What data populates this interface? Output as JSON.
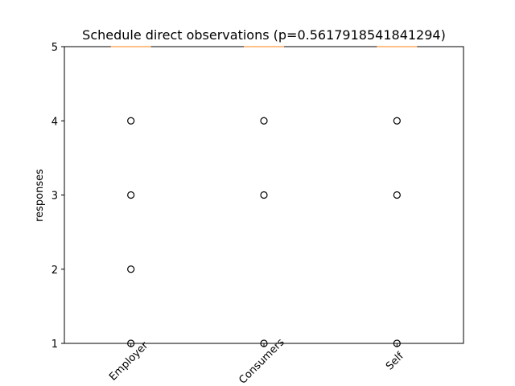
{
  "chart_data": {
    "type": "box",
    "title": "Schedule direct observations (p=0.5617918541841294)",
    "ylabel": "responses",
    "categories": [
      "Employer",
      "Consumers",
      "Self"
    ],
    "boxes": [
      {
        "q1": 5,
        "median": 5,
        "q3": 5,
        "whislo": 5,
        "whishi": 5,
        "fliers": [
          1,
          2,
          3,
          4
        ]
      },
      {
        "q1": 5,
        "median": 5,
        "q3": 5,
        "whislo": 5,
        "whishi": 5,
        "fliers": [
          1,
          3,
          4
        ]
      },
      {
        "q1": 5,
        "median": 5,
        "q3": 5,
        "whislo": 5,
        "whishi": 5,
        "fliers": [
          1,
          3,
          4
        ]
      }
    ],
    "ylim": [
      1,
      5
    ],
    "yticks": [
      1,
      2,
      3,
      4,
      5
    ],
    "color": "#000000",
    "median_color": "#ff7f0e"
  }
}
